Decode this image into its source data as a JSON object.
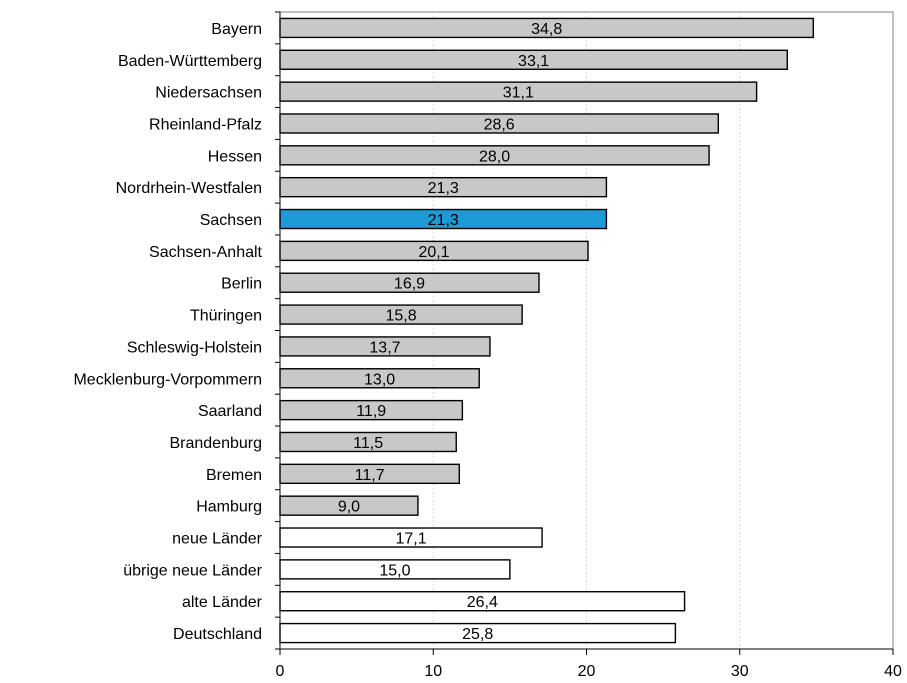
{
  "chart_data": {
    "type": "bar",
    "orientation": "horizontal",
    "categories": [
      "Bayern",
      "Baden-Württemberg",
      "Niedersachsen",
      "Rheinland-Pfalz",
      "Hessen",
      "Nordrhein-Westfalen",
      "Sachsen",
      "Sachsen-Anhalt",
      "Berlin",
      "Thüringen",
      "Schleswig-Holstein",
      "Mecklenburg-Vorpommern",
      "Saarland",
      "Brandenburg",
      "Bremen",
      "Hamburg",
      "neue Länder",
      "übrige neue Länder",
      "alte Länder",
      "Deutschland"
    ],
    "values": [
      34.8,
      33.1,
      31.1,
      28.6,
      28.0,
      21.3,
      21.3,
      20.1,
      16.9,
      15.8,
      13.7,
      13.0,
      11.9,
      11.5,
      11.7,
      9.0,
      17.1,
      15.0,
      26.4,
      25.8
    ],
    "value_labels": [
      "34,8",
      "33,1",
      "31,1",
      "28,6",
      "28,0",
      "21,3",
      "21,3",
      "20,1",
      "16,9",
      "15,8",
      "13,7",
      "13,0",
      "11,9",
      "11,5",
      "11,7",
      "9,0",
      "17,1",
      "15,0",
      "26,4",
      "25,8"
    ],
    "bar_colors": [
      "#c8c8c8",
      "#c8c8c8",
      "#c8c8c8",
      "#c8c8c8",
      "#c8c8c8",
      "#c8c8c8",
      "#1e9ad6",
      "#c8c8c8",
      "#c8c8c8",
      "#c8c8c8",
      "#c8c8c8",
      "#c8c8c8",
      "#c8c8c8",
      "#c8c8c8",
      "#c8c8c8",
      "#c8c8c8",
      "#ffffff",
      "#ffffff",
      "#ffffff",
      "#ffffff"
    ],
    "xlim": [
      0,
      40
    ],
    "xticks": [
      0,
      10,
      20,
      30,
      40
    ],
    "xtick_labels": [
      "0",
      "10",
      "20",
      "30",
      "40"
    ],
    "grid": "vertical dotted",
    "title": "",
    "xlabel": "",
    "ylabel": ""
  }
}
